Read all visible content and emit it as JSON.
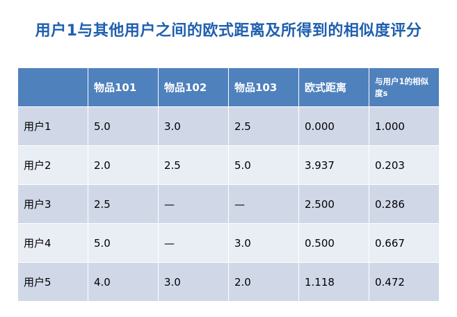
{
  "header": {
    "title": "用户1与其他用户之间的欧式距离及所得到的相似度评分"
  },
  "table": {
    "columns": [
      "物品101",
      "物品102",
      "物品103",
      "欧式距离",
      "与用户1的相似度s"
    ],
    "rows": [
      [
        "用户1",
        "5.0",
        "3.0",
        "2.5",
        "0.000",
        "1.000"
      ],
      [
        "用户2",
        "2.0",
        "2.5",
        "5.0",
        "3.937",
        "0.203"
      ],
      [
        "用户3",
        "2.5",
        "—",
        "—",
        "2.500",
        "0.286"
      ],
      [
        "用户4",
        "5.0",
        "—",
        "3.0",
        "0.500",
        "0.667"
      ],
      [
        "用户5",
        "4.0",
        "3.0",
        "2.0",
        "1.118",
        "0.472"
      ]
    ]
  }
}
